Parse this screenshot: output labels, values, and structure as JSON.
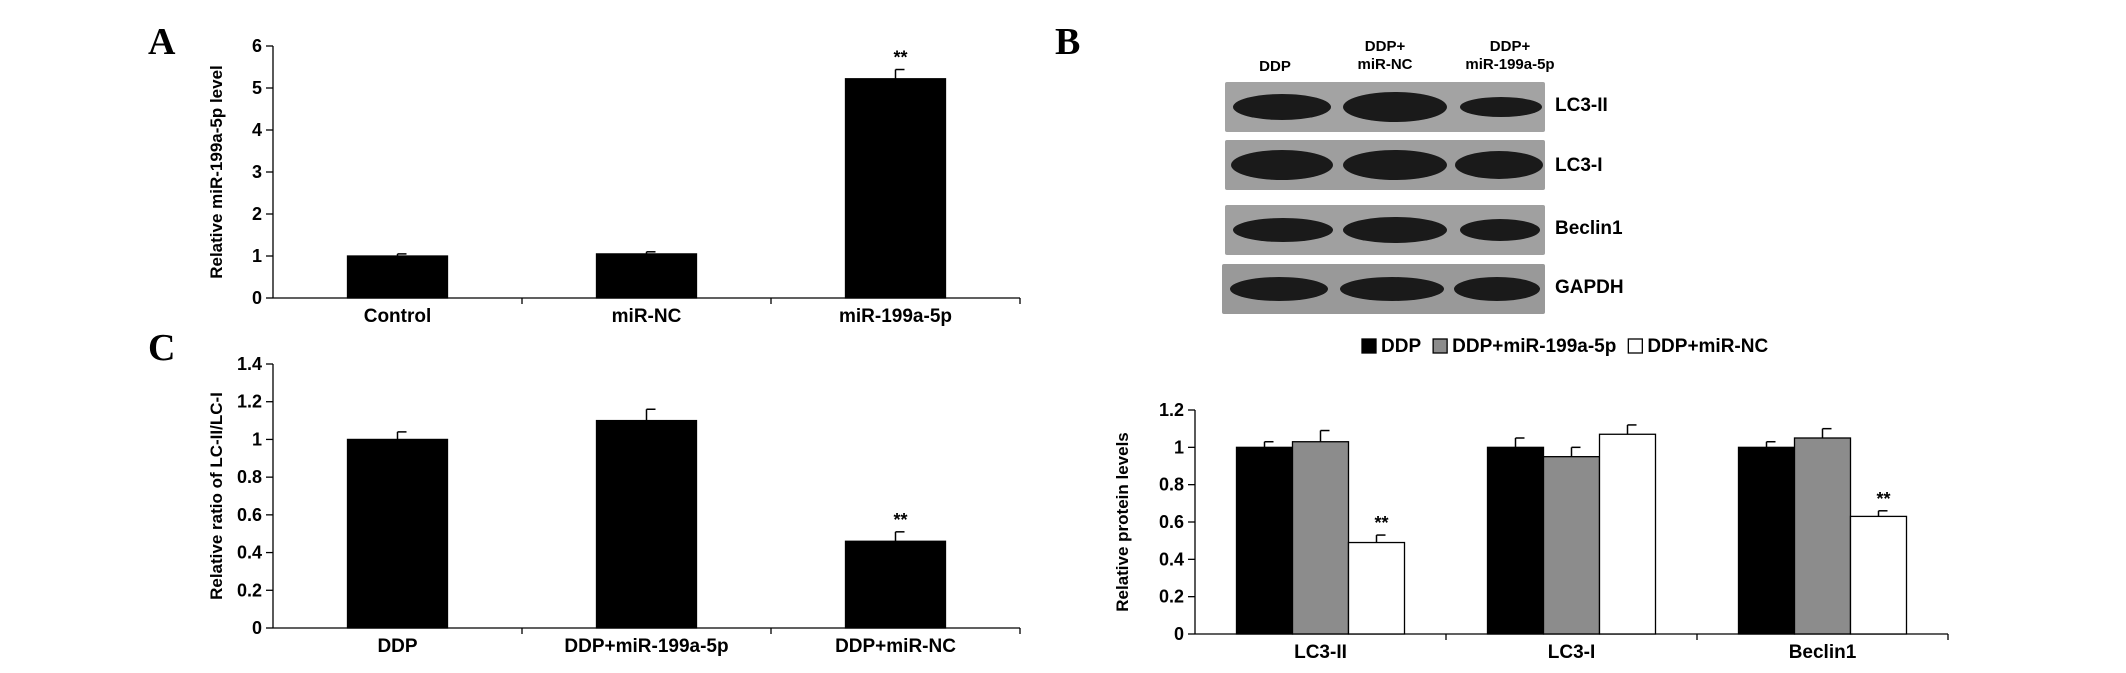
{
  "panels": {
    "a": "A",
    "b": "B",
    "c": "C"
  },
  "blot": {
    "lanes": [
      {
        "line1": "DDP",
        "line2": ""
      },
      {
        "line1": "DDP+",
        "line2": "miR-NC"
      },
      {
        "line1": "DDP+",
        "line2": "miR-199a-5p"
      }
    ],
    "rows": [
      "LC3-II",
      "LC3-I",
      "Beclin1",
      "GAPDH"
    ],
    "colors": {
      "background": "#9a9a9a",
      "band": "#1a1a1a"
    }
  },
  "chart_data": [
    {
      "id": "A",
      "type": "bar",
      "categories": [
        "Control",
        "miR-NC",
        "miR-199a-5p"
      ],
      "values": [
        1.0,
        1.05,
        5.22
      ],
      "errors": [
        0.05,
        0.05,
        0.22
      ],
      "annotations": [
        "",
        "",
        "**"
      ],
      "ylabel": "Relative miR-199a-5p level",
      "ylim": [
        0,
        6
      ],
      "yticks": [
        "0",
        "1",
        "2",
        "3",
        "4",
        "5",
        "6"
      ],
      "color": "#000000"
    },
    {
      "id": "C",
      "type": "bar",
      "categories": [
        "DDP",
        "DDP+miR-199a-5p",
        "DDP+miR-NC"
      ],
      "values": [
        1.0,
        1.1,
        0.46
      ],
      "errors": [
        0.04,
        0.06,
        0.05
      ],
      "annotations": [
        "",
        "",
        "**"
      ],
      "ylabel": "Relative ratio of LC-II/LC-I",
      "ylim": [
        0,
        1.4
      ],
      "yticks": [
        "0",
        "0.2",
        "0.4",
        "0.6",
        "0.8",
        "1",
        "1.2",
        "1.4"
      ],
      "color": "#000000"
    },
    {
      "id": "D",
      "type": "bar",
      "categories": [
        "LC3-II",
        "LC3-I",
        "Beclin1"
      ],
      "series": [
        {
          "name": "DDP",
          "values": [
            1.0,
            1.0,
            1.0
          ],
          "errors": [
            0.03,
            0.05,
            0.03
          ],
          "annotations": [
            "",
            "",
            ""
          ],
          "color": "#000000"
        },
        {
          "name": "DDP+miR-199a-5p",
          "values": [
            1.03,
            0.95,
            1.05
          ],
          "errors": [
            0.06,
            0.05,
            0.05
          ],
          "annotations": [
            "",
            "",
            ""
          ],
          "color": "#8c8c8c"
        },
        {
          "name": "DDP+miR-NC",
          "values": [
            0.49,
            1.07,
            0.63
          ],
          "errors": [
            0.04,
            0.05,
            0.03
          ],
          "annotations": [
            "**",
            "",
            "**"
          ],
          "color": "#ffffff"
        }
      ],
      "ylabel": "Relative protein levels",
      "ylim": [
        0,
        1.2
      ],
      "yticks": [
        "0",
        "0.2",
        "0.4",
        "0.6",
        "0.8",
        "1",
        "1.2"
      ],
      "legend_position": "top"
    }
  ]
}
